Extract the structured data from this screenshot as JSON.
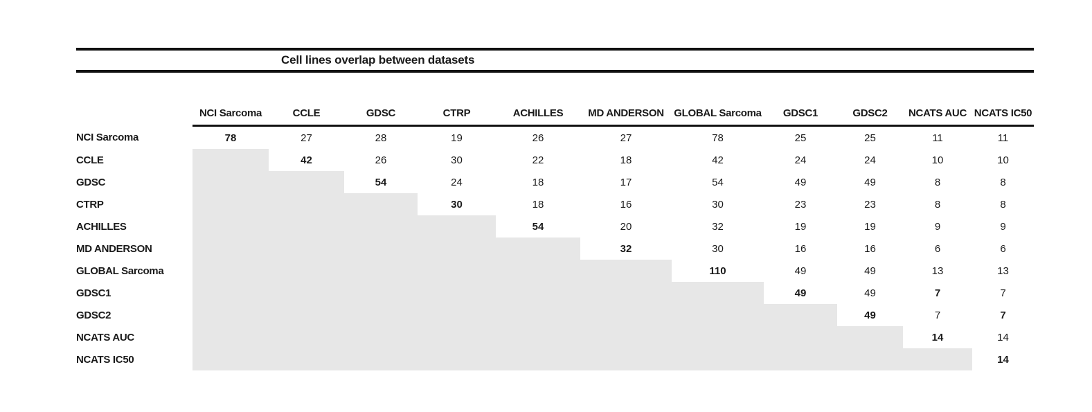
{
  "title": "Cell lines overlap between datasets",
  "table": {
    "columns": [
      "NCI Sarcoma",
      "CCLE",
      "GDSC",
      "CTRP",
      "ACHILLES",
      "MD ANDERSON",
      "GLOBAL Sarcoma",
      "GDSC1",
      "GDSC2",
      "NCATS AUC",
      "NCATS IC50"
    ],
    "rows": [
      {
        "label": "NCI Sarcoma",
        "cells": [
          "78",
          "27",
          "28",
          "19",
          "26",
          "27",
          "78",
          "25",
          "25",
          "11",
          "11"
        ],
        "bold": [
          0
        ]
      },
      {
        "label": "CCLE",
        "cells": [
          null,
          "42",
          "26",
          "30",
          "22",
          "18",
          "42",
          "24",
          "24",
          "10",
          "10"
        ],
        "bold": [
          1
        ]
      },
      {
        "label": "GDSC",
        "cells": [
          null,
          null,
          "54",
          "24",
          "18",
          "17",
          "54",
          "49",
          "49",
          "8",
          "8"
        ],
        "bold": [
          2
        ]
      },
      {
        "label": "CTRP",
        "cells": [
          null,
          null,
          null,
          "30",
          "18",
          "16",
          "30",
          "23",
          "23",
          "8",
          "8"
        ],
        "bold": [
          3
        ]
      },
      {
        "label": "ACHILLES",
        "cells": [
          null,
          null,
          null,
          null,
          "54",
          "20",
          "32",
          "19",
          "19",
          "9",
          "9"
        ],
        "bold": [
          4
        ]
      },
      {
        "label": "MD ANDERSON",
        "cells": [
          null,
          null,
          null,
          null,
          null,
          "32",
          "30",
          "16",
          "16",
          "6",
          "6"
        ],
        "bold": [
          5
        ]
      },
      {
        "label": "GLOBAL Sarcoma",
        "cells": [
          null,
          null,
          null,
          null,
          null,
          null,
          "110",
          "49",
          "49",
          "13",
          "13"
        ],
        "bold": [
          6
        ]
      },
      {
        "label": "GDSC1",
        "cells": [
          null,
          null,
          null,
          null,
          null,
          null,
          null,
          "49",
          "49",
          "7",
          "7"
        ],
        "bold": [
          7,
          9
        ]
      },
      {
        "label": "GDSC2",
        "cells": [
          null,
          null,
          null,
          null,
          null,
          null,
          null,
          null,
          "49",
          "7",
          "7"
        ],
        "bold": [
          8,
          10
        ]
      },
      {
        "label": "NCATS AUC",
        "cells": [
          null,
          null,
          null,
          null,
          null,
          null,
          null,
          null,
          null,
          "14",
          "14"
        ],
        "bold": [
          9
        ]
      },
      {
        "label": "NCATS IC50",
        "cells": [
          null,
          null,
          null,
          null,
          null,
          null,
          null,
          null,
          null,
          null,
          "14"
        ],
        "bold": [
          10
        ]
      }
    ]
  },
  "colors": {
    "shade": "#e7e7e7",
    "rule": "#111111",
    "text": "#1a1a1a"
  }
}
